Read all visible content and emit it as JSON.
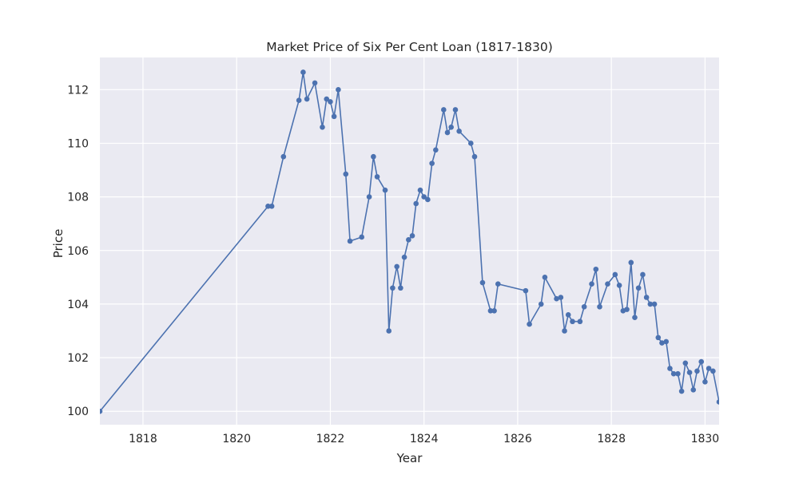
{
  "chart_data": {
    "type": "line",
    "title": "Market Price of Six Per Cent Loan (1817-1830)",
    "xlabel": "Year",
    "ylabel": "Price",
    "xlim": [
      1817.08,
      1830.3
    ],
    "ylim": [
      99.5,
      113.2
    ],
    "xticks": [
      1818,
      1820,
      1822,
      1824,
      1826,
      1828,
      1830
    ],
    "yticks": [
      100,
      102,
      104,
      106,
      108,
      110,
      112
    ],
    "grid": true,
    "legend": "none",
    "colors": {
      "line": "#4c72b0",
      "plot_bg": "#eaeaf2",
      "grid": "#ffffff",
      "text": "#262626"
    },
    "series": [
      {
        "x": [
          1817.08,
          1820.67,
          1820.75,
          1821.0,
          1821.33,
          1821.42,
          1821.5,
          1821.67,
          1821.83,
          1821.92,
          1822.0,
          1822.08,
          1822.17,
          1822.33,
          1822.42,
          1822.67,
          1822.83,
          1822.92,
          1823.0,
          1823.17,
          1823.25,
          1823.33,
          1823.42,
          1823.5,
          1823.58,
          1823.67,
          1823.75,
          1823.83,
          1823.92,
          1824.0,
          1824.08,
          1824.17,
          1824.25,
          1824.42,
          1824.5,
          1824.58,
          1824.67,
          1824.75,
          1825.0,
          1825.08,
          1825.25,
          1825.42,
          1825.5,
          1825.58,
          1826.17,
          1826.25,
          1826.5,
          1826.58,
          1826.83,
          1826.92,
          1827.0,
          1827.08,
          1827.17,
          1827.33,
          1827.42,
          1827.58,
          1827.67,
          1827.75,
          1827.92,
          1828.08,
          1828.17,
          1828.25,
          1828.33,
          1828.42,
          1828.5,
          1828.58,
          1828.67,
          1828.75,
          1828.83,
          1828.92,
          1829.0,
          1829.08,
          1829.17,
          1829.25,
          1829.33,
          1829.42,
          1829.5,
          1829.58,
          1829.67,
          1829.75,
          1829.83,
          1829.92,
          1830.0,
          1830.08,
          1830.17,
          1830.3
        ],
        "y": [
          100.0,
          107.65,
          107.65,
          109.5,
          111.6,
          112.65,
          111.65,
          112.25,
          110.6,
          111.65,
          111.55,
          111.0,
          112.0,
          108.85,
          106.35,
          106.5,
          108.0,
          109.5,
          108.75,
          108.25,
          103.0,
          104.6,
          105.4,
          104.6,
          105.75,
          106.4,
          106.55,
          107.75,
          108.25,
          108.0,
          107.9,
          109.25,
          109.75,
          111.25,
          110.4,
          110.6,
          111.25,
          110.45,
          110.0,
          109.5,
          104.8,
          103.75,
          103.75,
          104.75,
          104.5,
          103.25,
          104.0,
          105.0,
          104.2,
          104.25,
          103.0,
          103.6,
          103.35,
          103.35,
          103.9,
          104.75,
          105.3,
          103.9,
          104.75,
          105.1,
          104.7,
          103.75,
          103.8,
          105.55,
          103.5,
          104.6,
          105.1,
          104.25,
          104.0,
          104.0,
          102.75,
          102.55,
          102.6,
          101.6,
          101.4,
          101.4,
          100.75,
          101.8,
          101.45,
          100.8,
          101.5,
          101.85,
          101.1,
          101.6,
          101.5,
          100.35
        ]
      }
    ]
  }
}
